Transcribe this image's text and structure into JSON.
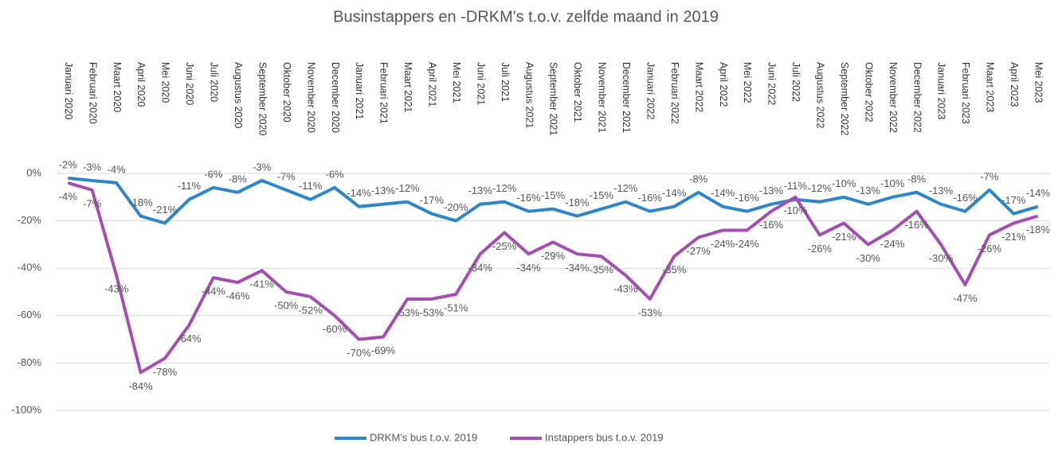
{
  "chart_data": {
    "type": "line",
    "title": "Businstappers en -DRKM's t.o.v. zelfde maand in 2019",
    "categories": [
      "Januari 2020",
      "Februari 2020",
      "Maart 2020",
      "April 2020",
      "Mei 2020",
      "Juni 2020",
      "Juli 2020",
      "Augustus 2020",
      "September 2020",
      "Oktober 2020",
      "November 2020",
      "December 2020",
      "Januari 2021",
      "Februari 2021",
      "Maart 2021",
      "April 2021",
      "Mei 2021",
      "Juni 2021",
      "Juli 2021",
      "Augustus 2021",
      "September 2021",
      "Oktober 2021",
      "November 2021",
      "December 2021",
      "Januari 2022",
      "Februari 2022",
      "Maart 2022",
      "April 2022",
      "Mei 2022",
      "Juni 2022",
      "Juli 2022",
      "Augustus 2022",
      "September 2022",
      "Oktober 2022",
      "November 2022",
      "December 2022",
      "Januari 2023",
      "Februari 2023",
      "Maart 2023",
      "April 2023",
      "Mei 2023"
    ],
    "series": [
      {
        "name": "DRKM's bus t.o.v. 2019",
        "color": "#2e86c8",
        "values": [
          -2,
          -3,
          -4,
          -18,
          -21,
          -11,
          -6,
          -8,
          -3,
          -7,
          -11,
          -6,
          -14,
          -13,
          -12,
          -17,
          -20,
          -13,
          -12,
          -16,
          -15,
          -18,
          -15,
          -12,
          -16,
          -14,
          -8,
          -14,
          -16,
          -13,
          -11,
          -12,
          -10,
          -13,
          -10,
          -8,
          -13,
          -16,
          -7,
          -17,
          -14
        ],
        "value_labels": [
          "-2%",
          "-3%",
          "-4%",
          "-18%",
          "-21%",
          "-11%",
          "-6%",
          "-8%",
          "-3%",
          "-7%",
          "-11%",
          "-6%",
          "-14%",
          "-13%",
          "-12%",
          "-17%",
          "-20%",
          "-13%",
          "-12%",
          "-16%",
          "-15%",
          "-18%",
          "-15%",
          "-12%",
          "-16%",
          "-14%",
          "-8%",
          "-14%",
          "-16%",
          "-13%",
          "-11%",
          "-12%",
          "-10%",
          "-13%",
          "-10%",
          "-8%",
          "-13%",
          "-16%",
          "-7%",
          "-17%",
          "-14%"
        ]
      },
      {
        "name": "Instappers bus t.o.v. 2019",
        "color": "#a34fb0",
        "values": [
          -4,
          -7,
          -43,
          -84,
          -78,
          -64,
          -44,
          -46,
          -41,
          -50,
          -52,
          -60,
          -70,
          -69,
          -53,
          -53,
          -51,
          -34,
          -25,
          -34,
          -29,
          -34,
          -35,
          -43,
          -53,
          -35,
          -27,
          -24,
          -24,
          -16,
          -10,
          -26,
          -21,
          -30,
          -24,
          -16,
          -30,
          -47,
          -26,
          -21,
          -18
        ],
        "value_labels": [
          "-4%",
          "-7%",
          "-43%",
          "-84%",
          "-78%",
          "-64%",
          "-44%",
          "-46%",
          "-41%",
          "-50%",
          "-52%",
          "-60%",
          "-70%",
          "-69%",
          "-53%",
          "-53%",
          "-51%",
          "-34%",
          "-25%",
          "-34%",
          "-29%",
          "-34%",
          "-35%",
          "-43%",
          "-53%",
          "-35%",
          "-27%",
          "-24%",
          "-24%",
          "-16%",
          "-10%",
          "-26%",
          "-21%",
          "-30%",
          "-24%",
          "-16%",
          "-30%",
          "-47%",
          "-26%",
          "-21%",
          "-18%"
        ]
      }
    ],
    "ylim": [
      -100,
      0
    ],
    "yticks": [
      {
        "value": 0,
        "label": "0%"
      },
      {
        "value": -20,
        "label": "-20%"
      },
      {
        "value": -40,
        "label": "-40%"
      },
      {
        "value": -60,
        "label": "-60%"
      },
      {
        "value": -80,
        "label": "-80%"
      },
      {
        "value": -100,
        "label": "-100%"
      }
    ],
    "grid": true,
    "legend": "bottom"
  }
}
